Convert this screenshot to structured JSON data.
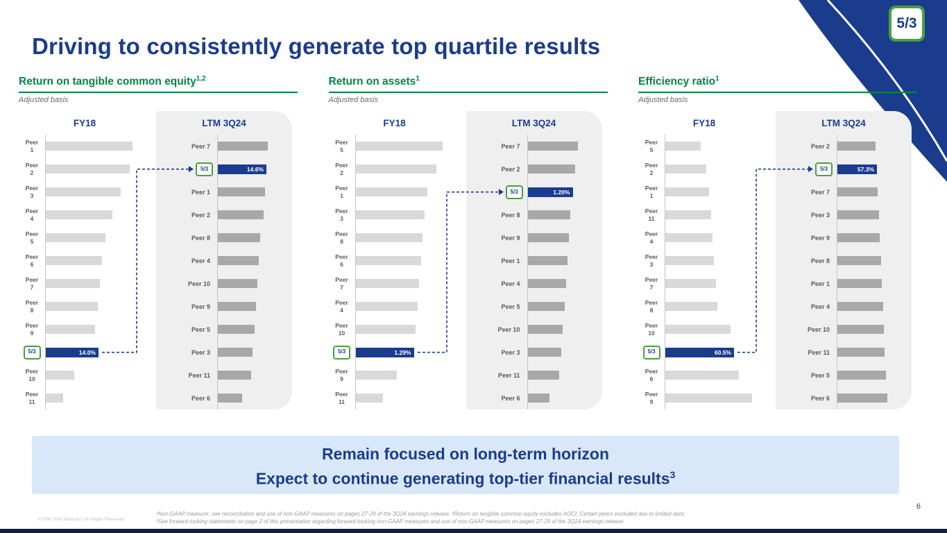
{
  "slide": {
    "title": "Driving to consistently generate top quartile results",
    "page_number": "6",
    "copyright": "© Fifth Third Bancorp | All Rights Reserved",
    "logo_text": "5/3",
    "footnotes": [
      "¹Non-GAAP measure; see reconciliation and use of non-GAAP measures on pages 27-29 of the 3Q24 earnings release; ²Return on tangible common equity excludes AOCI; Certain peers excluded due to limited data;",
      "³See forward-looking statements on page 2 of this presentation regarding forward-looking non-GAAP measures and use of non-GAAP measures on pages 27-29 of the 3Q24 earnings release"
    ]
  },
  "callout": {
    "line1": "Remain focused on long-term horizon",
    "line2": "Expect to continue generating top-tier financial results",
    "line2_sup": "3"
  },
  "colors": {
    "navy": "#1b3c8c",
    "green": "#008642",
    "logo_green": "#45a041",
    "bar_light": "#d9d9d9",
    "bar_dark": "#a8a8a8",
    "panel_bg": "#efefef",
    "callout_bg": "#d9e8f8"
  },
  "note": "Bar values are relative lengths (% of longest bar in each column); axes are unlabeled. Highlighted Fifth Third bars show the only printed data labels.",
  "chart_data": [
    {
      "type": "bar",
      "title": "Return on tangible common equity",
      "title_sup": "1,2",
      "subtitle": "Adjusted basis",
      "columns": [
        {
          "label": "FY18",
          "bars": [
            {
              "label": "Peer 1",
              "value": 100
            },
            {
              "label": "Peer 2",
              "value": 97
            },
            {
              "label": "Peer 3",
              "value": 86
            },
            {
              "label": "Peer 4",
              "value": 77
            },
            {
              "label": "Peer 5",
              "value": 69
            },
            {
              "label": "Peer 6",
              "value": 65
            },
            {
              "label": "Peer 7",
              "value": 62
            },
            {
              "label": "Peer 8",
              "value": 60
            },
            {
              "label": "Peer 9",
              "value": 57
            },
            {
              "label": "Fifth Third",
              "logo": true,
              "highlight": true,
              "value": 61,
              "display": "14.0%"
            },
            {
              "label": "Peer 10",
              "value": 33
            },
            {
              "label": "Peer 11",
              "value": 20
            }
          ]
        },
        {
          "label": "LTM 3Q24",
          "bars": [
            {
              "label": "Peer 7",
              "value": 100
            },
            {
              "label": "Fifth Third",
              "logo": true,
              "highlight": true,
              "value": 97,
              "display": "14.6%"
            },
            {
              "label": "Peer 1",
              "value": 94
            },
            {
              "label": "Peer 2",
              "value": 92
            },
            {
              "label": "Peer 8",
              "value": 85
            },
            {
              "label": "Peer 4",
              "value": 82
            },
            {
              "label": "Peer 10",
              "value": 79
            },
            {
              "label": "Peer 9",
              "value": 76
            },
            {
              "label": "Peer 5",
              "value": 73
            },
            {
              "label": "Peer 3",
              "value": 70
            },
            {
              "label": "Peer 11",
              "value": 67
            },
            {
              "label": "Peer 6",
              "value": 48
            }
          ]
        }
      ]
    },
    {
      "type": "bar",
      "title": "Return on assets",
      "title_sup": "1",
      "subtitle": "Adjusted basis",
      "columns": [
        {
          "label": "FY18",
          "bars": [
            {
              "label": "Peer 5",
              "value": 100
            },
            {
              "label": "Peer 2",
              "value": 93
            },
            {
              "label": "Peer 1",
              "value": 82
            },
            {
              "label": "Peer 3",
              "value": 79
            },
            {
              "label": "Peer 8",
              "value": 77
            },
            {
              "label": "Peer 6",
              "value": 75
            },
            {
              "label": "Peer 7",
              "value": 73
            },
            {
              "label": "Peer 4",
              "value": 71
            },
            {
              "label": "Peer 10",
              "value": 69
            },
            {
              "label": "Fifth Third",
              "logo": true,
              "highlight": true,
              "value": 67,
              "display": "1.29%"
            },
            {
              "label": "Peer 9",
              "value": 47
            },
            {
              "label": "Peer 11",
              "value": 31
            }
          ]
        },
        {
          "label": "LTM 3Q24",
          "bars": [
            {
              "label": "Peer 7",
              "value": 100
            },
            {
              "label": "Peer 2",
              "value": 95
            },
            {
              "label": "Fifth Third",
              "logo": true,
              "highlight": true,
              "value": 90,
              "display": "1.20%"
            },
            {
              "label": "Peer 8",
              "value": 85
            },
            {
              "label": "Peer 9",
              "value": 82
            },
            {
              "label": "Peer 1",
              "value": 79
            },
            {
              "label": "Peer 4",
              "value": 76
            },
            {
              "label": "Peer 5",
              "value": 73
            },
            {
              "label": "Peer 10",
              "value": 70
            },
            {
              "label": "Peer 3",
              "value": 67
            },
            {
              "label": "Peer 11",
              "value": 63
            },
            {
              "label": "Peer 6",
              "value": 43
            }
          ]
        }
      ]
    },
    {
      "type": "bar",
      "title": "Efficiency ratio",
      "title_sup": "1",
      "subtitle": "Adjusted basis",
      "columns": [
        {
          "label": "FY18",
          "bars": [
            {
              "label": "Peer 5",
              "value": 41
            },
            {
              "label": "Peer 2",
              "value": 47
            },
            {
              "label": "Peer 1",
              "value": 50
            },
            {
              "label": "Peer 11",
              "value": 53
            },
            {
              "label": "Peer 4",
              "value": 54
            },
            {
              "label": "Peer 3",
              "value": 56
            },
            {
              "label": "Peer 7",
              "value": 58
            },
            {
              "label": "Peer 8",
              "value": 60
            },
            {
              "label": "Peer 10",
              "value": 75
            },
            {
              "label": "Fifth Third",
              "logo": true,
              "highlight": true,
              "value": 79,
              "display": "60.5%"
            },
            {
              "label": "Peer 6",
              "value": 85
            },
            {
              "label": "Peer 9",
              "value": 100
            }
          ]
        },
        {
          "label": "LTM 3Q24",
          "bars": [
            {
              "label": "Peer 2",
              "value": 76
            },
            {
              "label": "Fifth Third",
              "logo": true,
              "highlight": true,
              "value": 79,
              "display": "57.3%"
            },
            {
              "label": "Peer 7",
              "value": 81
            },
            {
              "label": "Peer 3",
              "value": 83
            },
            {
              "label": "Peer 9",
              "value": 85
            },
            {
              "label": "Peer 8",
              "value": 87
            },
            {
              "label": "Peer 1",
              "value": 89
            },
            {
              "label": "Peer 4",
              "value": 91
            },
            {
              "label": "Peer 10",
              "value": 93
            },
            {
              "label": "Peer 11",
              "value": 95
            },
            {
              "label": "Peer 5",
              "value": 97
            },
            {
              "label": "Peer 6",
              "value": 100
            }
          ]
        }
      ]
    }
  ]
}
